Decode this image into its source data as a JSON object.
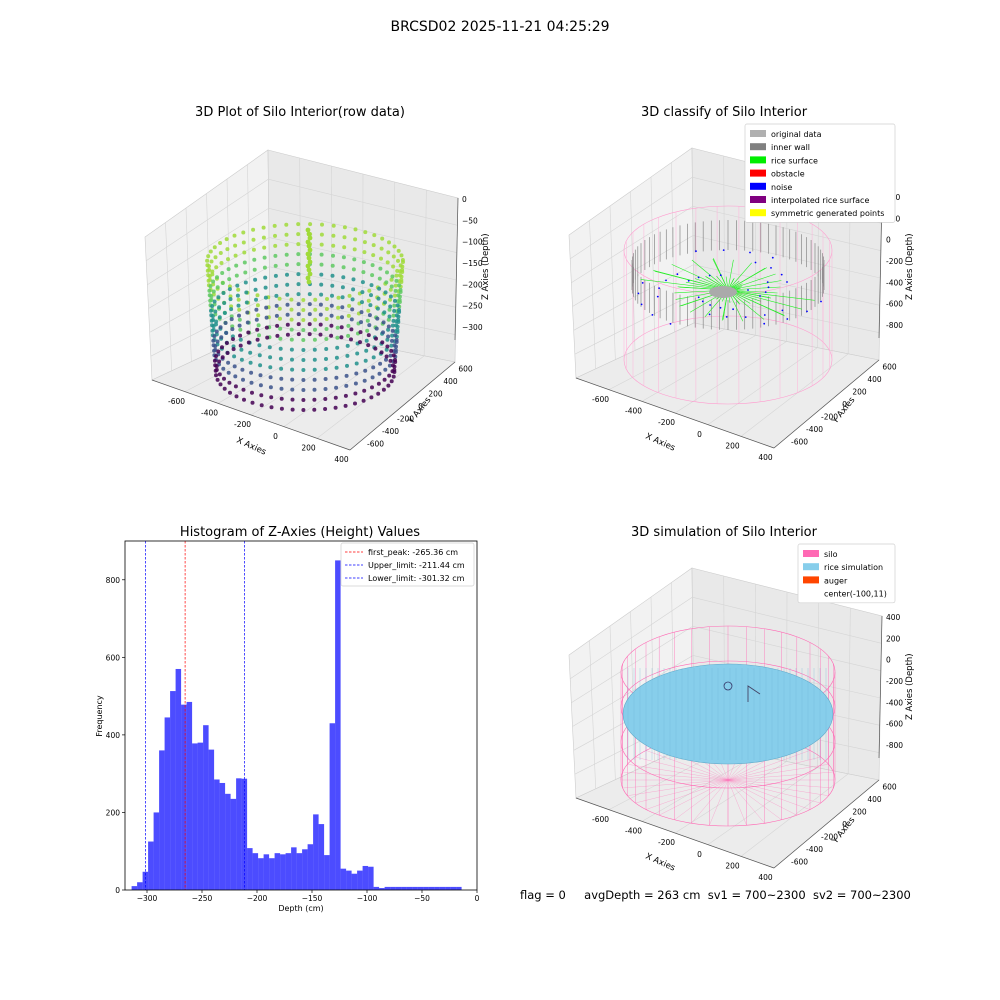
{
  "figure_title": "BRCSD02 2025-11-21 04:25:29",
  "status": {
    "flag": "flag = 0",
    "avg_depth": "avgDepth = 263 cm",
    "sv1": "sv1 = 700~2300",
    "sv2": "sv2 = 700~2300"
  },
  "panels": {
    "raw": {
      "title": "3D Plot of Silo Interior(row data)",
      "xlabel": "X Axies",
      "ylabel": "Y Axies",
      "zlabel": "Z Axies (Depth)",
      "x_ticks": [
        "-600",
        "-400",
        "-200",
        "0",
        "200",
        "400"
      ],
      "y_ticks": [
        "-600",
        "-400",
        "-200",
        "0",
        "200",
        "400",
        "600"
      ],
      "z_ticks": [
        "0",
        "−50",
        "−100",
        "−150",
        "−200",
        "−250",
        "−300"
      ]
    },
    "classify": {
      "title": "3D classify of Silo Interior",
      "xlabel": "X Axies",
      "ylabel": "Y Axies",
      "zlabel": "Z Axies (Depth)",
      "x_ticks": [
        "-600",
        "-400",
        "-200",
        "0",
        "200",
        "400"
      ],
      "y_ticks": [
        "-600",
        "-400",
        "-200",
        "0",
        "200",
        "400",
        "600"
      ],
      "z_ticks": [
        "400",
        "200",
        "0",
        "-200",
        "-400",
        "-600",
        "-800"
      ],
      "legend": [
        {
          "label": "original data",
          "color": "#b0b0b0"
        },
        {
          "label": "inner wall",
          "color": "#808080"
        },
        {
          "label": "rice surface",
          "color": "#00ee00"
        },
        {
          "label": "obstacle",
          "color": "#ff0000"
        },
        {
          "label": "noise",
          "color": "#0000ff"
        },
        {
          "label": "interpolated rice surface",
          "color": "#800080"
        },
        {
          "label": "symmetric generated points",
          "color": "#ffff00"
        }
      ]
    },
    "simulation": {
      "title": "3D simulation of Silo Interior",
      "xlabel": "X Axies",
      "ylabel": "Y Axies",
      "zlabel": "Z Axies (Depth)",
      "x_ticks": [
        "-600",
        "-400",
        "-200",
        "0",
        "200",
        "400"
      ],
      "y_ticks": [
        "-600",
        "-400",
        "-200",
        "0",
        "200",
        "400",
        "600"
      ],
      "z_ticks": [
        "400",
        "200",
        "0",
        "-200",
        "-400",
        "-600",
        "-800"
      ],
      "legend": [
        {
          "label": "silo",
          "color": "#ff69b4"
        },
        {
          "label": "rice simulation",
          "color": "#87ceeb"
        },
        {
          "label": "auger",
          "color": "#ff4500"
        },
        {
          "label": "center(-100,11)",
          "color": ""
        }
      ]
    }
  },
  "chart_data": {
    "type": "bar",
    "title": "Histogram of Z-Axies (Height) Values",
    "xlabel": "Depth (cm)",
    "ylabel": "Frequency",
    "xlim": [
      -320,
      0
    ],
    "ylim": [
      0,
      900
    ],
    "x_ticks": [
      -300,
      -250,
      -200,
      -150,
      -100,
      -50,
      0
    ],
    "y_ticks": [
      0,
      200,
      400,
      600,
      800
    ],
    "bar_color": "#0000ff",
    "bin_edges": [
      -314,
      -309,
      -304,
      -299,
      -294,
      -289,
      -284,
      -279,
      -274,
      -269,
      -264,
      -259,
      -254,
      -249,
      -244,
      -239,
      -234,
      -229,
      -224,
      -219,
      -214,
      -209,
      -204,
      -199,
      -194,
      -189,
      -184,
      -179,
      -174,
      -169,
      -164,
      -159,
      -154,
      -149,
      -144,
      -139,
      -134,
      -129,
      -124,
      -119,
      -114,
      -109,
      -104,
      -99,
      -94,
      -89,
      -84,
      -79,
      -74,
      -69,
      -64,
      -59,
      -54,
      -49,
      -44,
      -39,
      -34,
      -29,
      -24,
      -19,
      -14
    ],
    "counts": [
      10,
      20,
      47,
      125,
      200,
      360,
      445,
      513,
      570,
      478,
      485,
      378,
      380,
      425,
      362,
      285,
      276,
      248,
      235,
      288,
      287,
      108,
      95,
      82,
      92,
      82,
      95,
      92,
      95,
      110,
      95,
      105,
      118,
      195,
      170,
      90,
      430,
      850,
      55,
      50,
      42,
      50,
      62,
      60,
      8,
      5,
      8,
      8,
      8,
      8,
      8,
      8,
      8,
      8,
      8,
      8,
      8,
      8,
      8,
      8
    ],
    "vlines": [
      {
        "label": "first_peak: -265.36 cm",
        "x": -265.36,
        "color": "#ff0000"
      },
      {
        "label": "Upper_limit: -211.44 cm",
        "x": -211.44,
        "color": "#0000ff"
      },
      {
        "label": "Lower_limit: -301.32 cm",
        "x": -301.32,
        "color": "#0000ff"
      }
    ],
    "legend_position": "upper right"
  }
}
